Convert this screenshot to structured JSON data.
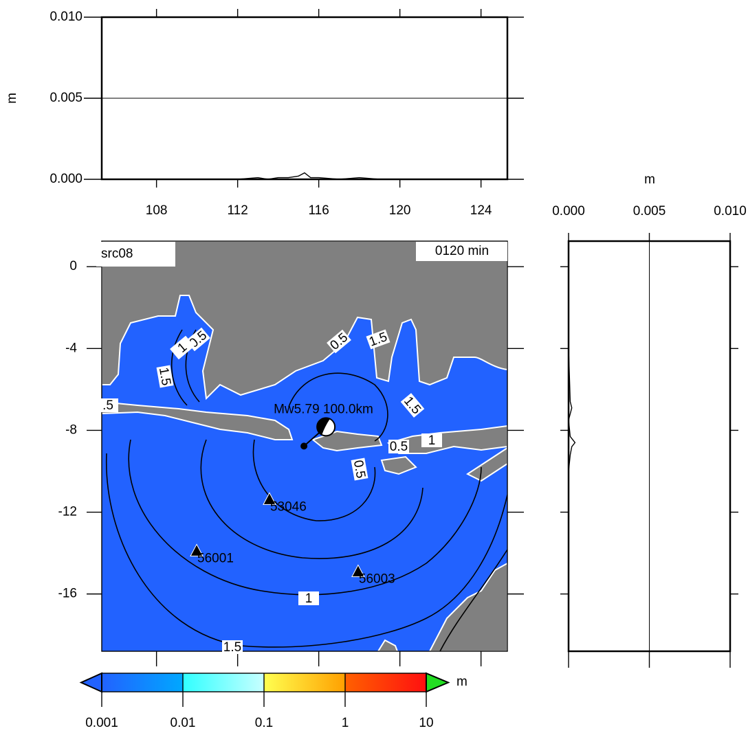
{
  "chart_data": [
    {
      "type": "line",
      "ylabel": "m",
      "xlim": [
        105.3,
        125.3
      ],
      "xticks": [
        108,
        112,
        116,
        120,
        124
      ],
      "ylim": [
        0,
        0.01
      ],
      "yticks": [
        {
          "value": 0,
          "label": "0.000"
        },
        {
          "value": 0.005,
          "label": "0.005"
        },
        {
          "value": 0.01,
          "label": "0.010"
        }
      ],
      "grid": true,
      "color": "#000000",
      "x": [
        110,
        112,
        113,
        113.5,
        114,
        114.5,
        115,
        115.3,
        115.6,
        116,
        117,
        118,
        119,
        120.5
      ],
      "values": [
        0,
        0,
        0.0001,
        0,
        0.0001,
        0.0001,
        0.0002,
        0.0004,
        0.0001,
        0.0001,
        0,
        0.0001,
        0,
        0
      ]
    },
    {
      "type": "map",
      "title": "src08",
      "time_label": "0120 min",
      "xlim": [
        105.3,
        125.3
      ],
      "ylim": [
        -18.8,
        1.25
      ],
      "yticks": [
        0,
        -4,
        -8,
        -12,
        -16
      ],
      "ocean_color": "#2262ff",
      "land_color": "#808080",
      "coastline_color": "#ffffff",
      "stations": [
        {
          "name": "53046",
          "x": 113.57,
          "y": -11.39
        },
        {
          "name": "56001",
          "x": 109.98,
          "y": -13.91
        },
        {
          "name": "56003",
          "x": 117.94,
          "y": -14.92
        }
      ],
      "epicenter": {
        "x": 115.27,
        "y": -8.77
      },
      "annotation": "Mw5.79  100.0km",
      "contour_labels": [
        "1.5",
        "0.5",
        "1.5",
        "0.5",
        "1",
        "1.5",
        "0.5",
        "1",
        "0.5",
        "1",
        "1.5",
        ".5"
      ],
      "colorbar": {
        "label": "m",
        "log": true,
        "ticks": [
          0.001,
          0.01,
          0.1,
          1,
          10
        ],
        "colors": [
          "#2262ff",
          "#00a8ff",
          "#30ffff",
          "#c8ffff",
          "#ffff50",
          "#ffa000",
          "#ff6000",
          "#ff1010"
        ],
        "under_color": "#2262ff",
        "over_color": "#22dd22"
      }
    },
    {
      "type": "line",
      "orientation": "horizontal",
      "xlabel": "m",
      "xlim": [
        0,
        0.01
      ],
      "xticks": [
        {
          "value": 0,
          "label": "0.000"
        },
        {
          "value": 0.005,
          "label": "0.005"
        },
        {
          "value": 0.01,
          "label": "0.010"
        }
      ],
      "grid": true,
      "color": "#000000",
      "y": [
        1.25,
        -4,
        -6.6,
        -6.9,
        -7.5,
        -8.3,
        -8.6,
        -8.8,
        -9.2,
        -10,
        -12,
        -18.8
      ],
      "values": [
        0,
        0,
        0.0001,
        0.0002,
        0,
        0.0001,
        0.0004,
        0.0002,
        0.0001,
        0,
        0,
        0
      ]
    }
  ]
}
